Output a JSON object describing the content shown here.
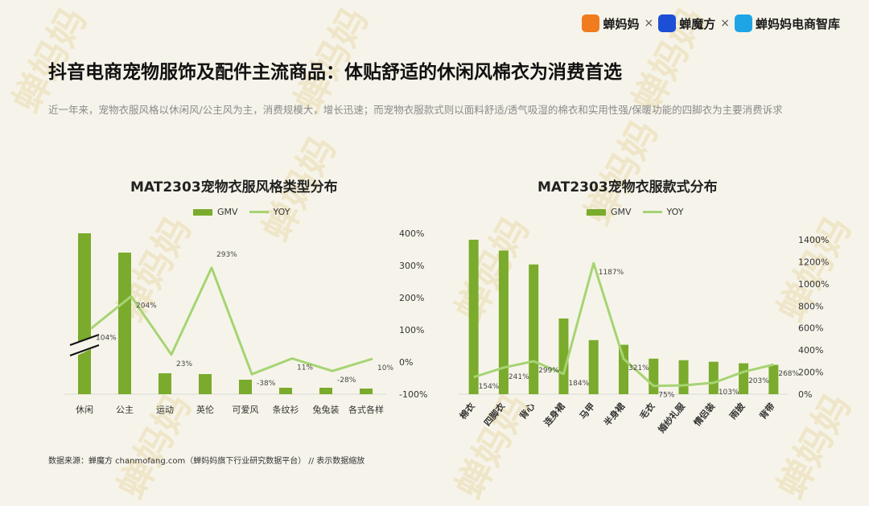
{
  "header": {
    "brand_1": "蝉妈妈",
    "brand_2": "蝉魔方",
    "brand_3": "蝉妈妈电商智库",
    "separator": "×",
    "brand_icons": [
      "chanmama-logo-icon",
      "chanmofang-logo-icon",
      "chanmama-zhiku-logo-icon"
    ]
  },
  "page": {
    "title": "抖音电商宠物服饰及配件主流商品：体贴舒适的休闲风棉衣为消费首选",
    "subtitle": "近一年来，宠物衣服风格以休闲风/公主风为主，消费规模大，增长迅速；而宠物衣服款式则以面料舒适/透气吸湿的棉衣和实用性强/保暖功能的四脚衣为主要消费诉求",
    "source": "数据来源：蝉魔方 chanmofang.com（蝉妈妈旗下行业研究数据平台） // 表示数据缩放",
    "watermark": "蝉妈妈"
  },
  "colors": {
    "bar": "#7aab2c",
    "line": "#a6d473",
    "axis_text": "#333333"
  },
  "chart_data": [
    {
      "type": "bar",
      "title": "MAT2303宠物衣服风格类型分布",
      "legend": [
        "GMV",
        "YOY"
      ],
      "legend_position": "top-center",
      "categories": [
        "休闲",
        "公主",
        "运动",
        "英伦",
        "可爱风",
        "条纹衫",
        "兔兔装",
        "各式各样"
      ],
      "series": [
        {
          "name": "GMV",
          "type": "bar",
          "values": [
            100,
            88,
            13,
            12.5,
            9,
            4,
            4,
            3.5
          ],
          "break_on_index": 0
        },
        {
          "name": "YOY",
          "type": "line",
          "axis": "right",
          "values": [
            104,
            204,
            23,
            293,
            -38,
            11,
            -28,
            10
          ],
          "labels": [
            "104%",
            "204%",
            "23%",
            "293%",
            "-38%",
            "11%",
            "-28%",
            "10%"
          ]
        }
      ],
      "y2_ticks": [
        "400%",
        "300%",
        "200%",
        "100%",
        "0%",
        "-100%"
      ],
      "y2lim": [
        -100,
        400
      ],
      "grid": false
    },
    {
      "type": "bar",
      "title": "MAT2303宠物衣服款式分布",
      "legend": [
        "GMV",
        "YOY"
      ],
      "legend_position": "top-center",
      "categories": [
        "棉衣",
        "四脚衣",
        "背心",
        "连身裙",
        "马甲",
        "半身裙",
        "毛衣",
        "婚纱礼服",
        "情侣装",
        "雨披",
        "背带"
      ],
      "series": [
        {
          "name": "GMV",
          "type": "bar",
          "values": [
            100,
            93,
            84,
            49,
            35,
            32,
            23,
            22,
            21,
            20,
            19
          ]
        },
        {
          "name": "YOY",
          "type": "line",
          "axis": "right",
          "values": [
            154,
            241,
            299,
            184,
            1187,
            321,
            75,
            80,
            103,
            203,
            268
          ],
          "labels": [
            "154%",
            "241%",
            "299%",
            "184%",
            "1187%",
            "321%",
            "75%",
            "",
            "103%",
            "203%",
            "268%"
          ]
        }
      ],
      "y2_ticks": [
        "1400%",
        "1200%",
        "1000%",
        "800%",
        "600%",
        "400%",
        "200%",
        "0%"
      ],
      "y2lim": [
        0,
        1400
      ],
      "grid": false
    }
  ]
}
